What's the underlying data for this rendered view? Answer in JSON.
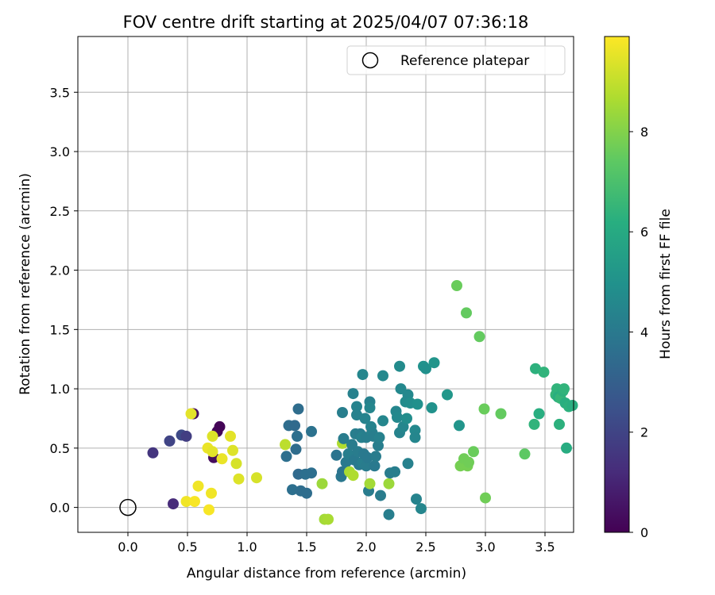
{
  "chart_data": {
    "type": "scatter",
    "title": "FOV centre drift starting at 2025/04/07 07:36:18",
    "xlabel": "Angular distance from reference (arcmin)",
    "ylabel": "Rotation from reference (arcmin)",
    "xlim": [
      -0.42,
      3.74
    ],
    "ylim": [
      -0.21,
      3.97
    ],
    "xticks": [
      "0.0",
      "0.5",
      "1.0",
      "1.5",
      "2.0",
      "2.5",
      "3.0",
      "3.5"
    ],
    "yticks": [
      "0.0",
      "0.5",
      "1.0",
      "1.5",
      "2.0",
      "2.5",
      "3.0",
      "3.5"
    ],
    "grid": true,
    "legend": {
      "position": "top-right",
      "entries": [
        "Reference platepar"
      ]
    },
    "reference_point": {
      "x": 0,
      "y": 0
    },
    "colorbar": {
      "label": "Hours from first FF file",
      "min": 0,
      "max": 9.9,
      "ticks": [
        "0",
        "2",
        "4",
        "6",
        "8"
      ],
      "colormap": "viridis"
    },
    "points": [
      {
        "x": 0.21,
        "y": 0.46,
        "h": 1.5
      },
      {
        "x": 0.35,
        "y": 0.56,
        "h": 2.0
      },
      {
        "x": 0.38,
        "y": 0.03,
        "h": 1.2
      },
      {
        "x": 0.45,
        "y": 0.61,
        "h": 2.2
      },
      {
        "x": 0.49,
        "y": 0.6,
        "h": 1.8
      },
      {
        "x": 0.55,
        "y": 0.79,
        "h": 0.4
      },
      {
        "x": 0.72,
        "y": 0.42,
        "h": 0.3
      },
      {
        "x": 0.75,
        "y": 0.64,
        "h": 0.2
      },
      {
        "x": 0.77,
        "y": 0.68,
        "h": 0.1
      },
      {
        "x": 0.49,
        "y": 0.05,
        "h": 9.7
      },
      {
        "x": 0.53,
        "y": 0.79,
        "h": 9.5
      },
      {
        "x": 0.56,
        "y": 0.05,
        "h": 9.8
      },
      {
        "x": 0.59,
        "y": 0.18,
        "h": 9.7
      },
      {
        "x": 0.67,
        "y": 0.5,
        "h": 9.6
      },
      {
        "x": 0.68,
        "y": -0.02,
        "h": 9.8
      },
      {
        "x": 0.7,
        "y": 0.12,
        "h": 9.7
      },
      {
        "x": 0.71,
        "y": 0.47,
        "h": 9.5
      },
      {
        "x": 0.71,
        "y": 0.6,
        "h": 9.4
      },
      {
        "x": 0.79,
        "y": 0.41,
        "h": 9.6
      },
      {
        "x": 0.86,
        "y": 0.6,
        "h": 9.5
      },
      {
        "x": 0.88,
        "y": 0.48,
        "h": 9.4
      },
      {
        "x": 0.91,
        "y": 0.37,
        "h": 9.3
      },
      {
        "x": 0.93,
        "y": 0.24,
        "h": 9.4
      },
      {
        "x": 1.08,
        "y": 0.25,
        "h": 9.3
      },
      {
        "x": 1.32,
        "y": 0.53,
        "h": 8.9
      },
      {
        "x": 1.33,
        "y": 0.43,
        "h": 3.6
      },
      {
        "x": 1.35,
        "y": 0.69,
        "h": 3.5
      },
      {
        "x": 1.38,
        "y": 0.15,
        "h": 3.6
      },
      {
        "x": 1.4,
        "y": 0.69,
        "h": 3.4
      },
      {
        "x": 1.41,
        "y": 0.49,
        "h": 3.5
      },
      {
        "x": 1.42,
        "y": 0.6,
        "h": 3.6
      },
      {
        "x": 1.43,
        "y": 0.83,
        "h": 3.5
      },
      {
        "x": 1.43,
        "y": 0.28,
        "h": 3.4
      },
      {
        "x": 1.45,
        "y": 0.14,
        "h": 3.5
      },
      {
        "x": 1.49,
        "y": 0.28,
        "h": 3.6
      },
      {
        "x": 1.5,
        "y": 0.12,
        "h": 3.5
      },
      {
        "x": 1.54,
        "y": 0.29,
        "h": 3.6
      },
      {
        "x": 1.54,
        "y": 0.64,
        "h": 3.7
      },
      {
        "x": 1.63,
        "y": 0.2,
        "h": 8.4
      },
      {
        "x": 1.65,
        "y": -0.1,
        "h": 8.5
      },
      {
        "x": 1.68,
        "y": -0.1,
        "h": 8.6
      },
      {
        "x": 1.75,
        "y": 0.44,
        "h": 3.8
      },
      {
        "x": 1.79,
        "y": 0.26,
        "h": 3.9
      },
      {
        "x": 1.8,
        "y": 0.3,
        "h": 3.8
      },
      {
        "x": 1.8,
        "y": 0.8,
        "h": 4.2
      },
      {
        "x": 1.8,
        "y": 0.54,
        "h": 8.7
      },
      {
        "x": 1.81,
        "y": 0.58,
        "h": 4.1
      },
      {
        "x": 1.83,
        "y": 0.38,
        "h": 4.0
      },
      {
        "x": 1.85,
        "y": 0.45,
        "h": 4.2
      },
      {
        "x": 1.86,
        "y": 0.3,
        "h": 8.6
      },
      {
        "x": 1.88,
        "y": 0.53,
        "h": 4.1
      },
      {
        "x": 1.89,
        "y": 0.96,
        "h": 4.3
      },
      {
        "x": 1.89,
        "y": 0.27,
        "h": 8.7
      },
      {
        "x": 1.9,
        "y": 0.4,
        "h": 4.0
      },
      {
        "x": 1.91,
        "y": 0.62,
        "h": 4.2
      },
      {
        "x": 1.92,
        "y": 0.85,
        "h": 4.4
      },
      {
        "x": 1.92,
        "y": 0.78,
        "h": 4.3
      },
      {
        "x": 1.93,
        "y": 0.47,
        "h": 4.1
      },
      {
        "x": 1.94,
        "y": 0.36,
        "h": 4.0
      },
      {
        "x": 1.95,
        "y": 0.62,
        "h": 4.1
      },
      {
        "x": 1.96,
        "y": 0.59,
        "h": 4.3
      },
      {
        "x": 1.97,
        "y": 1.12,
        "h": 4.5
      },
      {
        "x": 1.97,
        "y": 0.38,
        "h": 4.2
      },
      {
        "x": 1.98,
        "y": 0.45,
        "h": 4.0
      },
      {
        "x": 1.99,
        "y": 0.75,
        "h": 4.4
      },
      {
        "x": 2.0,
        "y": 0.59,
        "h": 4.2
      },
      {
        "x": 2.0,
        "y": 0.35,
        "h": 4.1
      },
      {
        "x": 2.01,
        "y": 0.42,
        "h": 4.0
      },
      {
        "x": 2.02,
        "y": 0.14,
        "h": 4.1
      },
      {
        "x": 2.03,
        "y": 0.89,
        "h": 4.3
      },
      {
        "x": 2.03,
        "y": 0.84,
        "h": 4.5
      },
      {
        "x": 2.03,
        "y": 0.2,
        "h": 8.5
      },
      {
        "x": 2.04,
        "y": 0.68,
        "h": 4.4
      },
      {
        "x": 2.05,
        "y": 0.63,
        "h": 4.3
      },
      {
        "x": 2.06,
        "y": 0.6,
        "h": 4.2
      },
      {
        "x": 2.07,
        "y": 0.35,
        "h": 4.0
      },
      {
        "x": 2.08,
        "y": 0.43,
        "h": 4.1
      },
      {
        "x": 2.1,
        "y": 0.52,
        "h": 4.2
      },
      {
        "x": 2.11,
        "y": 0.59,
        "h": 4.3
      },
      {
        "x": 2.12,
        "y": 0.1,
        "h": 4.1
      },
      {
        "x": 2.14,
        "y": 1.11,
        "h": 4.6
      },
      {
        "x": 2.14,
        "y": 0.73,
        "h": 4.5
      },
      {
        "x": 2.19,
        "y": 0.2,
        "h": 8.4
      },
      {
        "x": 2.19,
        "y": -0.06,
        "h": 4.2
      },
      {
        "x": 2.2,
        "y": 0.29,
        "h": 4.1
      },
      {
        "x": 2.24,
        "y": 0.3,
        "h": 4.2
      },
      {
        "x": 2.25,
        "y": 0.81,
        "h": 4.5
      },
      {
        "x": 2.26,
        "y": 0.76,
        "h": 4.6
      },
      {
        "x": 2.28,
        "y": 1.19,
        "h": 4.7
      },
      {
        "x": 2.28,
        "y": 0.63,
        "h": 4.4
      },
      {
        "x": 2.29,
        "y": 1.0,
        "h": 4.6
      },
      {
        "x": 2.31,
        "y": 0.68,
        "h": 4.5
      },
      {
        "x": 2.33,
        "y": 0.89,
        "h": 4.7
      },
      {
        "x": 2.34,
        "y": 0.75,
        "h": 4.8
      },
      {
        "x": 2.35,
        "y": 0.95,
        "h": 4.6
      },
      {
        "x": 2.35,
        "y": 0.37,
        "h": 4.3
      },
      {
        "x": 2.37,
        "y": 0.88,
        "h": 4.8
      },
      {
        "x": 2.41,
        "y": 0.65,
        "h": 4.6
      },
      {
        "x": 2.41,
        "y": 0.59,
        "h": 4.5
      },
      {
        "x": 2.42,
        "y": 0.07,
        "h": 4.4
      },
      {
        "x": 2.43,
        "y": 0.87,
        "h": 4.9
      },
      {
        "x": 2.46,
        "y": -0.01,
        "h": 4.5
      },
      {
        "x": 2.48,
        "y": 1.19,
        "h": 5.0
      },
      {
        "x": 2.5,
        "y": 1.17,
        "h": 4.9
      },
      {
        "x": 2.55,
        "y": 0.84,
        "h": 5.0
      },
      {
        "x": 2.57,
        "y": 1.22,
        "h": 5.1
      },
      {
        "x": 2.68,
        "y": 0.95,
        "h": 5.2
      },
      {
        "x": 2.76,
        "y": 1.87,
        "h": 7.6
      },
      {
        "x": 2.78,
        "y": 0.69,
        "h": 5.1
      },
      {
        "x": 2.79,
        "y": 0.35,
        "h": 7.8
      },
      {
        "x": 2.82,
        "y": 0.41,
        "h": 7.7
      },
      {
        "x": 2.84,
        "y": 1.64,
        "h": 7.5
      },
      {
        "x": 2.85,
        "y": 0.35,
        "h": 7.8
      },
      {
        "x": 2.86,
        "y": 0.38,
        "h": 7.7
      },
      {
        "x": 2.9,
        "y": 0.47,
        "h": 7.6
      },
      {
        "x": 2.95,
        "y": 1.44,
        "h": 7.5
      },
      {
        "x": 2.99,
        "y": 0.83,
        "h": 7.6
      },
      {
        "x": 3.0,
        "y": 0.08,
        "h": 7.7
      },
      {
        "x": 3.13,
        "y": 0.79,
        "h": 7.5
      },
      {
        "x": 3.33,
        "y": 0.45,
        "h": 7.4
      },
      {
        "x": 3.41,
        "y": 0.7,
        "h": 6.4
      },
      {
        "x": 3.42,
        "y": 1.17,
        "h": 6.3
      },
      {
        "x": 3.45,
        "y": 0.79,
        "h": 6.2
      },
      {
        "x": 3.49,
        "y": 1.14,
        "h": 6.4
      },
      {
        "x": 3.59,
        "y": 0.95,
        "h": 6.5
      },
      {
        "x": 3.6,
        "y": 1.0,
        "h": 6.4
      },
      {
        "x": 3.61,
        "y": 0.93,
        "h": 6.2
      },
      {
        "x": 3.62,
        "y": 0.7,
        "h": 6.3
      },
      {
        "x": 3.63,
        "y": 0.92,
        "h": 6.5
      },
      {
        "x": 3.65,
        "y": 0.98,
        "h": 6.3
      },
      {
        "x": 3.66,
        "y": 1.0,
        "h": 6.4
      },
      {
        "x": 3.67,
        "y": 0.88,
        "h": 6.2
      },
      {
        "x": 3.68,
        "y": 0.5,
        "h": 6.1
      },
      {
        "x": 3.7,
        "y": 0.85,
        "h": 6.3
      },
      {
        "x": 3.73,
        "y": 0.86,
        "h": 6.2
      }
    ]
  }
}
